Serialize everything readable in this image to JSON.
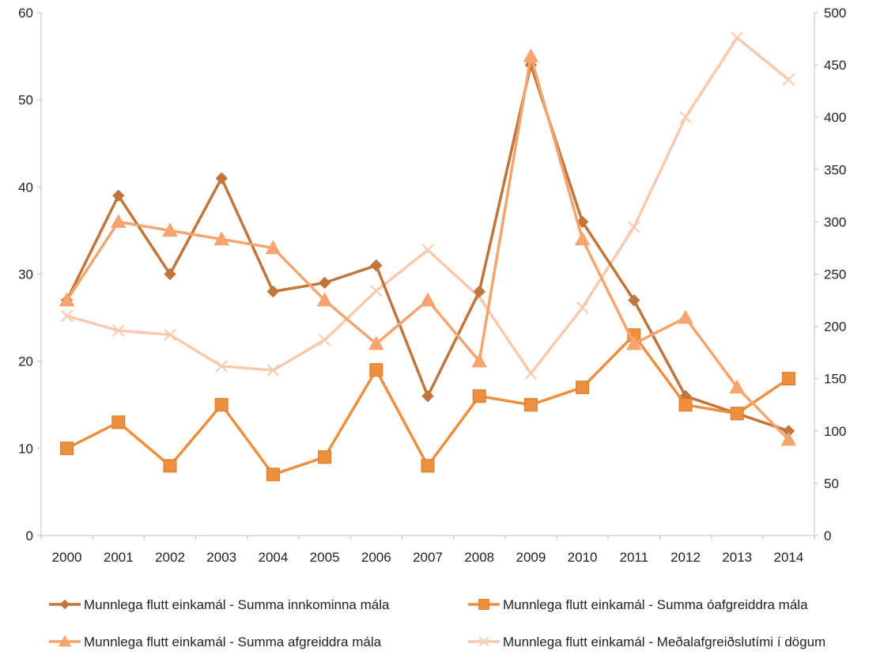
{
  "chart_data": {
    "type": "line",
    "title": "",
    "xlabel": "",
    "ylabel": "",
    "y2label": "",
    "x": [
      "2000",
      "2001",
      "2002",
      "2003",
      "2004",
      "2005",
      "2006",
      "2007",
      "2008",
      "2009",
      "2010",
      "2011",
      "2012",
      "2013",
      "2014"
    ],
    "ylim": [
      0,
      60
    ],
    "y_ticks": [
      0,
      10,
      20,
      30,
      40,
      50,
      60
    ],
    "y2lim": [
      0,
      500
    ],
    "y2_ticks": [
      0,
      50,
      100,
      150,
      200,
      250,
      300,
      350,
      400,
      450,
      500
    ],
    "grid": false,
    "legend_position": "bottom",
    "series": [
      {
        "name": "Munnlega flutt einkamál - Summa innkominna mála",
        "axis": "left",
        "marker": "diamond",
        "color": "#C0753A",
        "values": [
          27,
          39,
          30,
          41,
          28,
          29,
          31,
          16,
          28,
          54,
          36,
          27,
          16,
          14,
          12
        ]
      },
      {
        "name": "Munnlega flutt einkamál - Summa óafgreiddra mála",
        "axis": "left",
        "marker": "square",
        "color": "#ED8F3C",
        "values": [
          10,
          13,
          8,
          15,
          7,
          9,
          19,
          8,
          16,
          15,
          17,
          23,
          15,
          14,
          18
        ]
      },
      {
        "name": "Munnlega flutt einkamál - Summa afgreiddra mála",
        "axis": "left",
        "marker": "triangle",
        "color": "#F5A46E",
        "values": [
          27,
          36,
          35,
          34,
          33,
          27,
          22,
          27,
          20,
          55,
          34,
          22,
          25,
          17,
          11
        ]
      },
      {
        "name": "Munnlega flutt einkamál - Meðalafgreiðslutími í dögum",
        "axis": "right",
        "marker": "x",
        "color": "#F8C9AE",
        "values": [
          210,
          196,
          192,
          162,
          158,
          187,
          234,
          273,
          228,
          155,
          218,
          295,
          400,
          476,
          436
        ]
      }
    ]
  }
}
